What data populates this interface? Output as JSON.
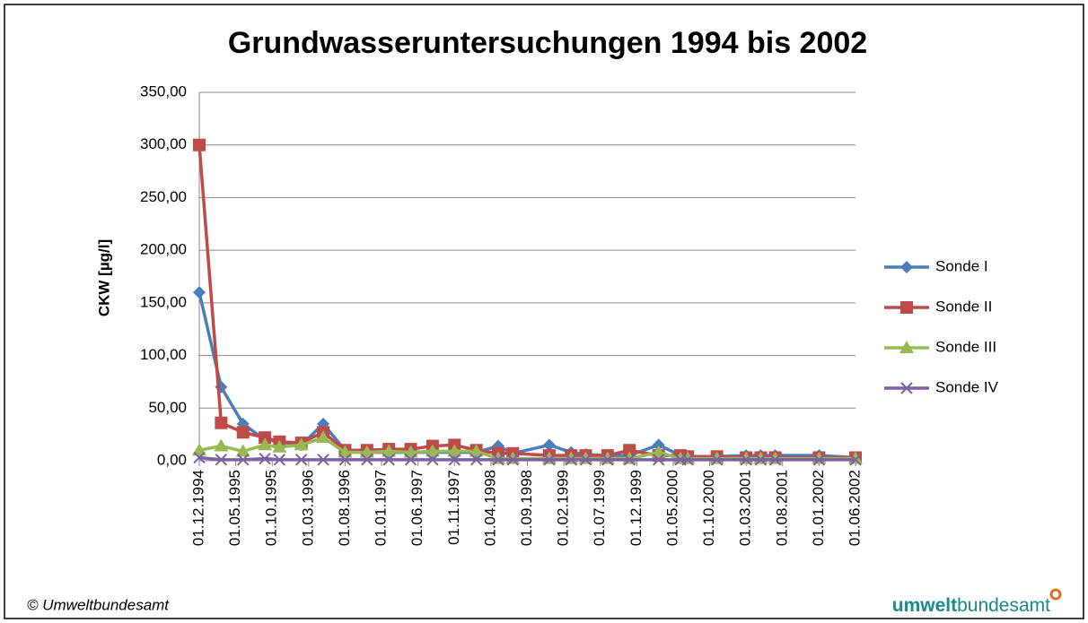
{
  "chart_data": {
    "type": "line",
    "title": "Grundwasseruntersuchungen 1994 bis 2002",
    "ylabel": "CKW [µg/l]",
    "x": [
      "01.12.1994",
      "01.03.1995",
      "01.06.1995",
      "01.09.1995",
      "01.11.1995",
      "01.02.1996",
      "01.05.1996",
      "01.08.1996",
      "01.11.1996",
      "01.02.1997",
      "01.05.1997",
      "01.08.1997",
      "01.11.1997",
      "01.02.1998",
      "01.05.1998",
      "01.07.1998",
      "01.12.1998",
      "01.03.1999",
      "01.05.1999",
      "01.08.1999",
      "01.11.1999",
      "01.03.2000",
      "01.06.2000",
      "01.07.2000",
      "01.11.2000",
      "01.03.2001",
      "01.05.2001",
      "01.07.2001",
      "01.01.2002",
      "01.06.2002"
    ],
    "xlim": [
      "01.12.1994",
      "01.06.2002"
    ],
    "xticks": [
      "01.12.1994",
      "01.05.1995",
      "01.10.1995",
      "01.03.1996",
      "01.08.1996",
      "01.01.1997",
      "01.06.1997",
      "01.11.1997",
      "01.04.1998",
      "01.09.1998",
      "01.02.1999",
      "01.07.1999",
      "01.12.1999",
      "01.05.2000",
      "01.10.2000",
      "01.03.2001",
      "01.08.2001",
      "01.01.2002",
      "01.06.2002"
    ],
    "ylim": [
      0,
      350
    ],
    "yticks": [
      {
        "value": 0,
        "label": "0,00"
      },
      {
        "value": 50,
        "label": "50,00"
      },
      {
        "value": 100,
        "label": "100,00"
      },
      {
        "value": 150,
        "label": "150,00"
      },
      {
        "value": 200,
        "label": "200,00"
      },
      {
        "value": 250,
        "label": "250,00"
      },
      {
        "value": 300,
        "label": "300,00"
      },
      {
        "value": 350,
        "label": "350,00"
      }
    ],
    "grid": true,
    "legend": "right",
    "series": [
      {
        "name": "Sonde I",
        "color": "#4a7ebb",
        "marker": "diamond",
        "values": [
          160,
          70,
          35,
          20,
          18,
          15,
          35,
          10,
          8,
          8,
          8,
          8,
          8,
          8,
          14,
          7,
          15,
          8,
          6,
          5,
          5,
          15,
          5,
          4,
          4,
          5,
          5,
          5,
          5,
          3
        ]
      },
      {
        "name": "Sonde II",
        "color": "#be4b48",
        "marker": "square",
        "values": [
          300,
          36,
          27,
          22,
          18,
          17,
          27,
          10,
          10,
          11,
          11,
          14,
          15,
          10,
          7,
          7,
          5,
          5,
          5,
          5,
          10,
          5,
          5,
          4,
          4,
          3,
          3,
          3,
          3,
          3
        ]
      },
      {
        "name": "Sonde III",
        "color": "#98b954",
        "marker": "triangle",
        "values": [
          10,
          14,
          9,
          15,
          13,
          15,
          22,
          8,
          8,
          9,
          8,
          9,
          9,
          9,
          2,
          2,
          2,
          2,
          2,
          2,
          2,
          8,
          2,
          2,
          2,
          2,
          2,
          2,
          2,
          2
        ]
      },
      {
        "name": "Sonde IV",
        "color": "#7d60a0",
        "marker": "x",
        "values": [
          3,
          1,
          1,
          2,
          1,
          1,
          1,
          1,
          1,
          1,
          1,
          1,
          1,
          1,
          1,
          1,
          1,
          1,
          1,
          1,
          1,
          1,
          1,
          1,
          1,
          1,
          1,
          1,
          1,
          1
        ]
      }
    ]
  },
  "footer": {
    "copyright": "© Umweltbundesamt",
    "logo_bold": "umwelt",
    "logo_rest": "bundesamt"
  }
}
